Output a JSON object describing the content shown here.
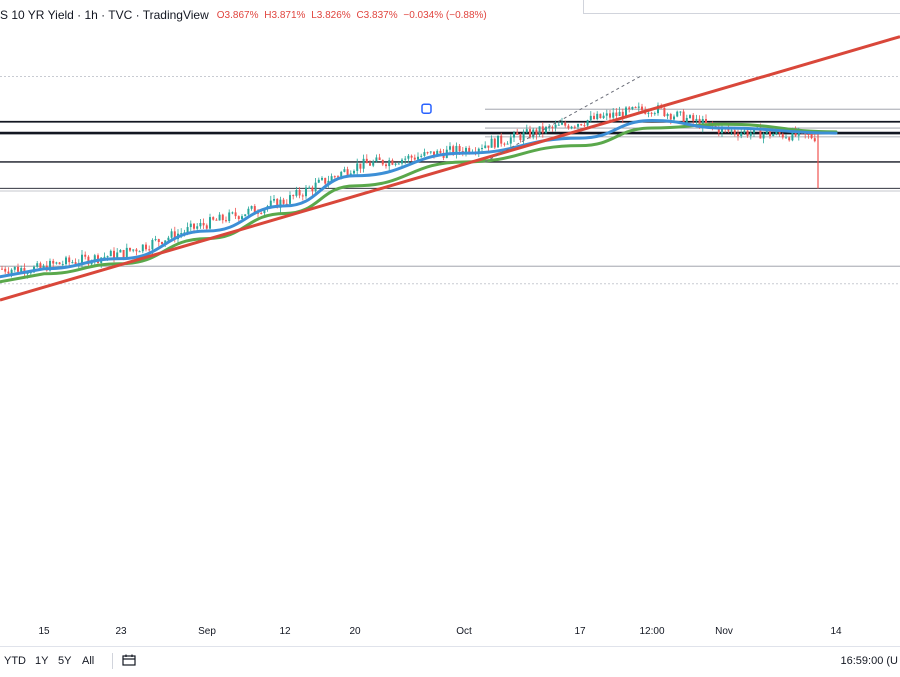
{
  "legend": {
    "title": "S 10 YR Yield · 1h · TVC · TradingView",
    "open": "O3.867%",
    "high": "H3.871%",
    "low": "L3.826%",
    "close": "C3.837%",
    "change": "−0.034% (−0.88%)"
  },
  "colors": {
    "candle_up": "#26a69a",
    "candle_down": "#ef5350",
    "ma_fast": "#3d8fd6",
    "ma_slow": "#5aa84b",
    "trendline": "#d9473a",
    "levels": "#131722",
    "reference_lines": "#9598a1",
    "legend_values": "#e0453f"
  },
  "x_axis": {
    "ticks": [
      "15",
      "23",
      "Sep",
      "12",
      "20",
      "Oct",
      "17",
      "12:00",
      "Nov",
      "14"
    ]
  },
  "bottom_bar": {
    "ranges": [
      "YTD",
      "1Y",
      "5Y",
      "All"
    ],
    "icon": "calendar-icon",
    "clock": "16:59:00 (U"
  },
  "chart_data": {
    "type": "line",
    "title": "S 10 YR Yield · 1h · TVC · TradingView",
    "units": "%",
    "last": {
      "open": 3.867,
      "high": 3.871,
      "low": 3.826,
      "close": 3.837,
      "change": -0.034,
      "change_pct": -0.88
    },
    "x": [
      "Aug 15",
      "Aug 23",
      "Sep",
      "Sep 12",
      "Sep 20",
      "Oct",
      "Oct 17",
      "Oct 21 12:00",
      "Nov",
      "Nov 14"
    ],
    "series": [
      {
        "values": [
          2.82,
          2.92,
          3.16,
          3.34,
          3.62,
          3.75,
          3.97,
          4.08,
          3.9,
          3.84
        ]
      },
      {
        "values": [
          2.8,
          2.88,
          3.1,
          3.3,
          3.54,
          3.72,
          3.84,
          3.98,
          3.92,
          3.88
        ]
      },
      {
        "values": [
          2.76,
          2.84,
          3.04,
          3.24,
          3.46,
          3.65,
          3.78,
          3.92,
          3.95,
          3.89
        ]
      },
      {
        "values": [
          2.71,
          2.84,
          3.03,
          3.22,
          3.42,
          3.62,
          3.77,
          3.9,
          4.04,
          4.17
        ]
      }
    ],
    "horizontal_levels": [
      4.07,
      3.97,
      3.92,
      3.88,
      3.85,
      3.65,
      3.44,
      2.82
    ],
    "dashed_reference_levels": [
      4.33,
      2.68
    ],
    "grid": false,
    "legend_position": "top-left"
  }
}
